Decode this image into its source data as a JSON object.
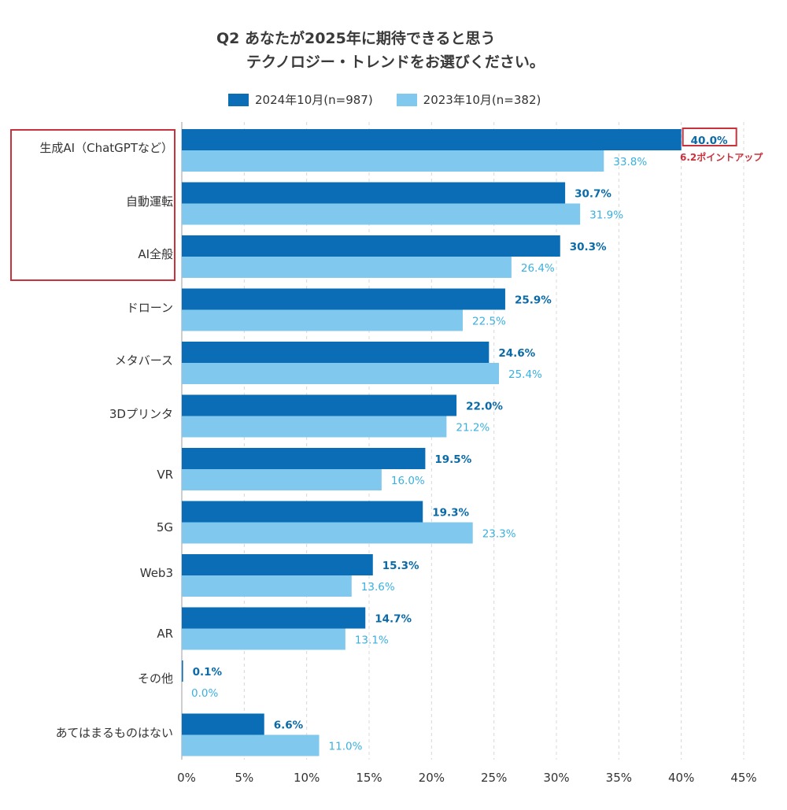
{
  "chart_data": {
    "type": "bar",
    "orientation": "horizontal",
    "title_line1": "Q2 あなたが2025年に期待できると思う",
    "title_line2": "テクノロジー・トレンドをお選びください。",
    "categories": [
      "生成AI（ChatGPTなど）",
      "自動運転",
      "AI全般",
      "ドローン",
      "メタバース",
      "3Dプリンタ",
      "VR",
      "5G",
      "Web3",
      "AR",
      "その他",
      "あてはまるものはない"
    ],
    "series": [
      {
        "name": "2024年10月(n=987)",
        "color": "#0a6db5",
        "values": [
          40.0,
          30.7,
          30.3,
          25.9,
          24.6,
          22.0,
          19.5,
          19.3,
          15.3,
          14.7,
          0.1,
          6.6
        ],
        "labels": [
          "40.0%",
          "30.7%",
          "30.3%",
          "25.9%",
          "24.6%",
          "22.0%",
          "19.5%",
          "19.3%",
          "15.3%",
          "14.7%",
          "0.1%",
          "6.6%"
        ]
      },
      {
        "name": "2023年10月(n=382)",
        "color": "#80c8ee",
        "values": [
          33.8,
          31.9,
          26.4,
          22.5,
          25.4,
          21.2,
          16.0,
          23.3,
          13.6,
          13.1,
          0.0,
          11.0
        ],
        "labels": [
          "33.8%",
          "31.9%",
          "26.4%",
          "22.5%",
          "25.4%",
          "21.2%",
          "16.0%",
          "23.3%",
          "13.6%",
          "13.1%",
          "0.0%",
          "11.0%"
        ]
      }
    ],
    "x_ticks": [
      "0%",
      "5%",
      "10%",
      "15%",
      "20%",
      "25%",
      "30%",
      "35%",
      "40%",
      "45%"
    ],
    "xlim": [
      0,
      45
    ],
    "grid": true,
    "legend_position": "top-center",
    "annotation": "6.2ポイントアップ",
    "highlight_color": "#c8323c"
  }
}
